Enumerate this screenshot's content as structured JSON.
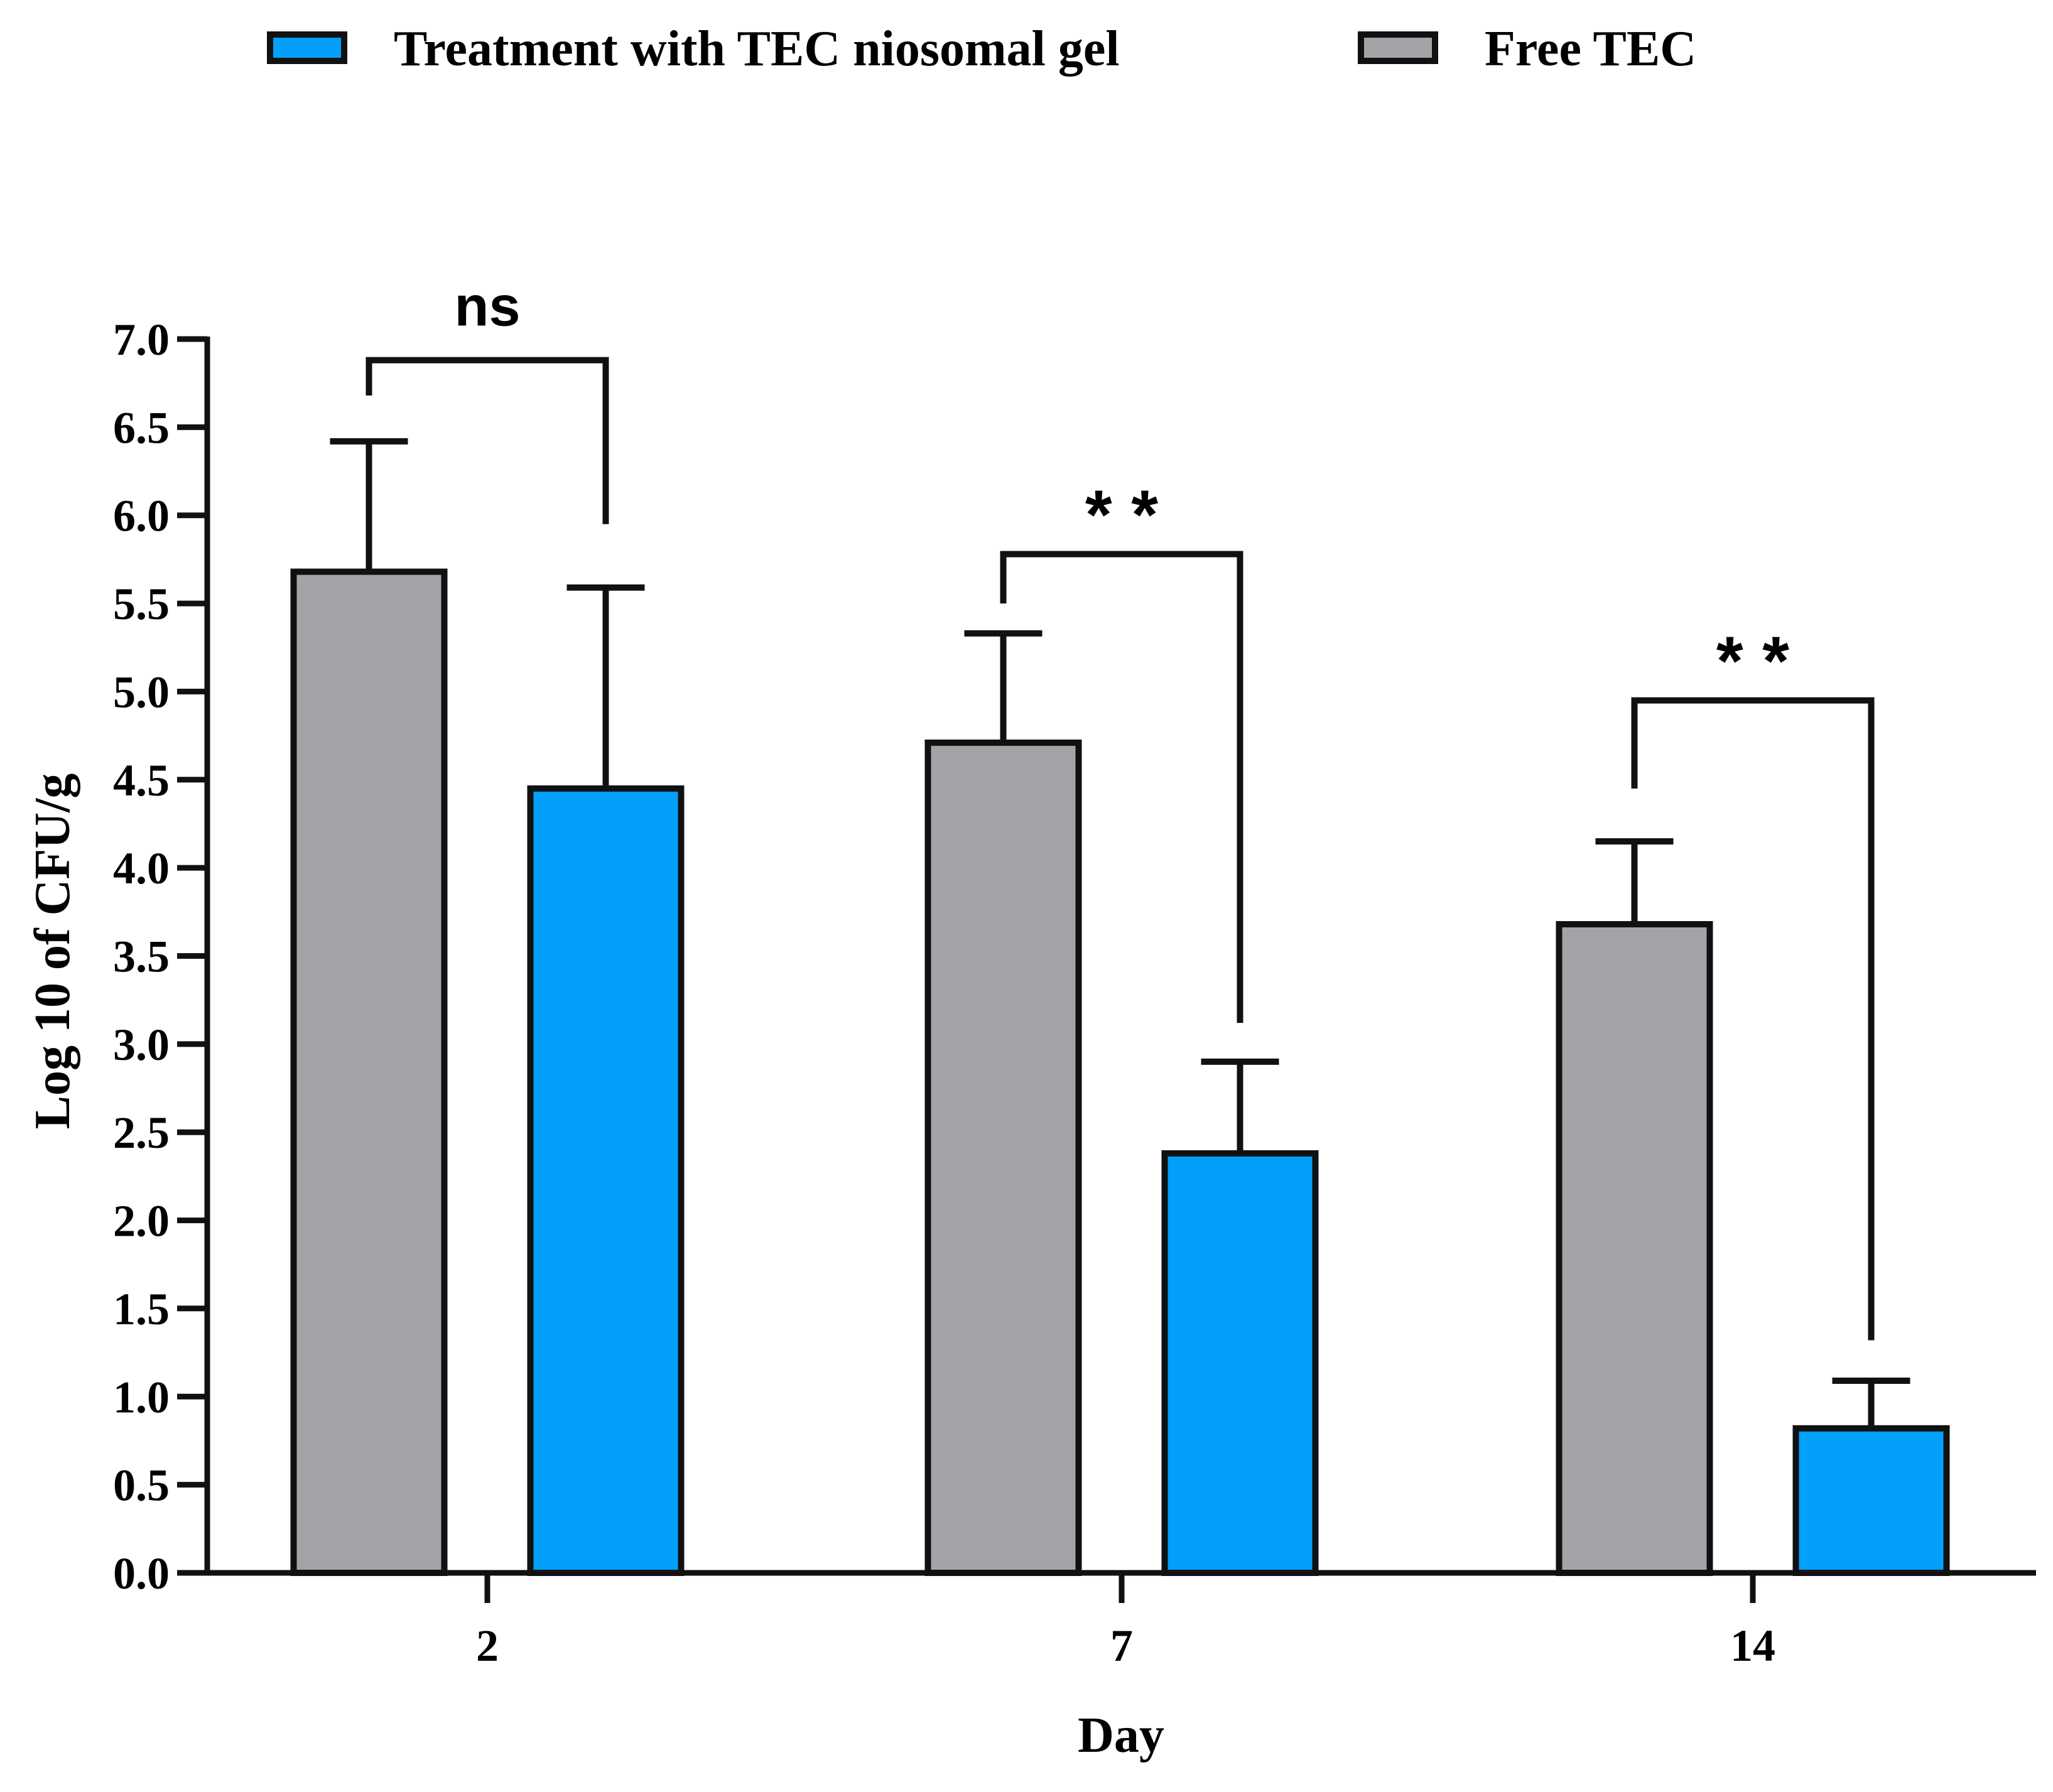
{
  "colors": {
    "free_tec": "#a3a4a8",
    "niosomal_gel": "#02a0fb",
    "stroke": "#111111"
  },
  "legend": {
    "items": [
      {
        "label": "Treatment with TEC niosomal gel",
        "series": "niosomal_gel"
      },
      {
        "label": "Free TEC",
        "series": "free_tec"
      }
    ]
  },
  "chart_data": {
    "type": "bar",
    "title": "",
    "xlabel": "Day",
    "ylabel": "Log 10 of CFU/g",
    "ylim": [
      0,
      7
    ],
    "ytick_step": 0.5,
    "ytick_labels": [
      "0.0",
      "0.5",
      "1.0",
      "1.5",
      "2.0",
      "2.5",
      "3.0",
      "3.5",
      "4.0",
      "4.5",
      "5.0",
      "5.5",
      "6.0",
      "6.5",
      "7.0"
    ],
    "categories": [
      "2",
      "7",
      "14"
    ],
    "legend_position": "top",
    "grid": false,
    "series": [
      {
        "name": "Free TEC",
        "key": "free_tec",
        "values": [
          5.68,
          4.71,
          3.68
        ],
        "errors": [
          0.74,
          0.62,
          0.47
        ]
      },
      {
        "name": "Treatment with TEC niosomal gel",
        "key": "niosomal_gel",
        "values": [
          4.45,
          2.38,
          0.82
        ],
        "errors": [
          1.14,
          0.52,
          0.27
        ]
      }
    ],
    "significance": [
      {
        "category": "2",
        "label": "ns",
        "bracket_y": 6.88,
        "left_end": 6.68,
        "right_end": 5.95
      },
      {
        "category": "7",
        "label": "* *",
        "bracket_y": 5.78,
        "left_end": 5.5,
        "right_end": 3.12
      },
      {
        "category": "14",
        "label": "* *",
        "bracket_y": 4.95,
        "left_end": 4.45,
        "right_end": 1.32
      }
    ]
  }
}
